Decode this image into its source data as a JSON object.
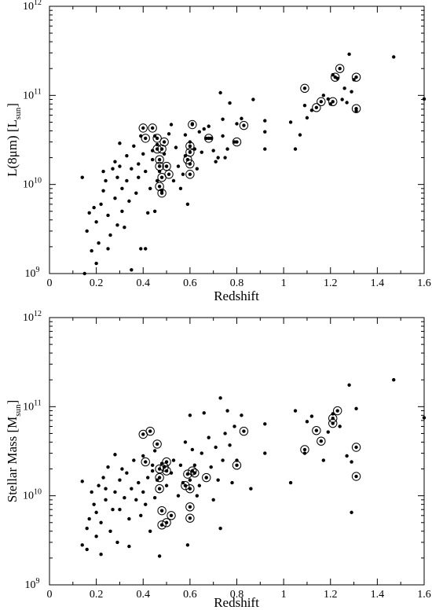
{
  "chart_data": [
    {
      "type": "scatter",
      "title": "",
      "xlabel": "Redshift",
      "ylabel": "L(8μm)  [L_sun]",
      "ylabel_parts": [
        "L(8μm)  [L",
        "sun",
        "]"
      ],
      "xlim": [
        0,
        1.6
      ],
      "ylim": [
        1000000000.0,
        1000000000000.0
      ],
      "yscale": "log",
      "x_ticks": [
        "0",
        "0.2",
        "0.4",
        "0.6",
        "0.8",
        "1",
        "1.2",
        "1.4",
        "1.6"
      ],
      "y_ticks": [
        {
          "base": "10",
          "exp": "9"
        },
        {
          "base": "10",
          "exp": "10"
        },
        {
          "base": "10",
          "exp": "11"
        },
        {
          "base": "10",
          "exp": "12"
        }
      ],
      "grid": false,
      "points": [
        [
          0.14,
          12000000000.0
        ],
        [
          0.15,
          1000000000.0
        ],
        [
          0.16,
          3000000000.0
        ],
        [
          0.17,
          4800000000.0
        ],
        [
          0.18,
          1800000000.0
        ],
        [
          0.19,
          5500000000.0
        ],
        [
          0.2,
          3800000000.0
        ],
        [
          0.2,
          1300000000.0
        ],
        [
          0.21,
          2200000000.0
        ],
        [
          0.22,
          6000000000.0
        ],
        [
          0.23,
          8500000000.0
        ],
        [
          0.23,
          14000000000.0
        ],
        [
          0.24,
          11000000000.0
        ],
        [
          0.25,
          4500000000.0
        ],
        [
          0.25,
          1900000000.0
        ],
        [
          0.26,
          2700000000.0
        ],
        [
          0.27,
          15000000000.0
        ],
        [
          0.28,
          18000000000.0
        ],
        [
          0.28,
          7000000000.0
        ],
        [
          0.29,
          3500000000.0
        ],
        [
          0.29,
          12000000000.0
        ],
        [
          0.3,
          29000000000.0
        ],
        [
          0.3,
          16000000000.0
        ],
        [
          0.31,
          5000000000.0
        ],
        [
          0.31,
          9000000000.0
        ],
        [
          0.32,
          3300000000.0
        ],
        [
          0.33,
          11000000000.0
        ],
        [
          0.33,
          21000000000.0
        ],
        [
          0.34,
          6500000000.0
        ],
        [
          0.35,
          15000000000.0
        ],
        [
          0.35,
          1100000000.0
        ],
        [
          0.36,
          27000000000.0
        ],
        [
          0.37,
          8000000000.0
        ],
        [
          0.38,
          12000000000.0
        ],
        [
          0.38,
          17000000000.0
        ],
        [
          0.39,
          35000000000.0
        ],
        [
          0.39,
          1900000000.0
        ],
        [
          0.4,
          22000000000.0
        ],
        [
          0.41,
          14000000000.0
        ],
        [
          0.41,
          1900000000.0
        ],
        [
          0.42,
          4800000000.0
        ],
        [
          0.43,
          9000000000.0
        ],
        [
          0.44,
          24000000000.0
        ],
        [
          0.44,
          19000000000.0
        ],
        [
          0.45,
          35000000000.0
        ],
        [
          0.45,
          5000000000.0
        ],
        [
          0.46,
          11000000000.0
        ],
        [
          0.46,
          28000000000.0
        ],
        [
          0.47,
          14000000000.0
        ],
        [
          0.48,
          8500000000.0
        ],
        [
          0.49,
          22000000000.0
        ],
        [
          0.5,
          16000000000.0
        ],
        [
          0.51,
          37000000000.0
        ],
        [
          0.52,
          47000000000.0
        ],
        [
          0.53,
          11000000000.0
        ],
        [
          0.54,
          26000000000.0
        ],
        [
          0.55,
          16000000000.0
        ],
        [
          0.56,
          9000000000.0
        ],
        [
          0.57,
          13000000000.0
        ],
        [
          0.58,
          36000000000.0
        ],
        [
          0.58,
          21000000000.0
        ],
        [
          0.59,
          6000000000.0
        ],
        [
          0.6,
          30000000000.0
        ],
        [
          0.61,
          48000000000.0
        ],
        [
          0.62,
          25000000000.0
        ],
        [
          0.63,
          15000000000.0
        ],
        [
          0.64,
          39000000000.0
        ],
        [
          0.65,
          23000000000.0
        ],
        [
          0.66,
          42000000000.0
        ],
        [
          0.67,
          33000000000.0
        ],
        [
          0.68,
          45000000000.0
        ],
        [
          0.69,
          33000000000.0
        ],
        [
          0.7,
          24000000000.0
        ],
        [
          0.71,
          18000000000.0
        ],
        [
          0.72,
          20000000000.0
        ],
        [
          0.73,
          107000000000.0
        ],
        [
          0.74,
          35000000000.0
        ],
        [
          0.74,
          54000000000.0
        ],
        [
          0.75,
          20000000000.0
        ],
        [
          0.76,
          25000000000.0
        ],
        [
          0.77,
          82000000000.0
        ],
        [
          0.79,
          30000000000.0
        ],
        [
          0.8,
          48000000000.0
        ],
        [
          0.82,
          55000000000.0
        ],
        [
          0.87,
          90000000000.0
        ],
        [
          0.92,
          52000000000.0
        ],
        [
          0.92,
          25000000000.0
        ],
        [
          0.92,
          39000000000.0
        ],
        [
          1.03,
          50000000000.0
        ],
        [
          1.05,
          25000000000.0
        ],
        [
          1.07,
          36000000000.0
        ],
        [
          1.09,
          77000000000.0
        ],
        [
          1.1,
          56000000000.0
        ],
        [
          1.12,
          68000000000.0
        ],
        [
          1.17,
          100000000000.0
        ],
        [
          1.19,
          91000000000.0
        ],
        [
          1.2,
          80000000000.0
        ],
        [
          1.21,
          170000000000.0
        ],
        [
          1.23,
          155000000000.0
        ],
        [
          1.25,
          90000000000.0
        ],
        [
          1.26,
          120000000000.0
        ],
        [
          1.27,
          83000000000.0
        ],
        [
          1.28,
          290000000000.0
        ],
        [
          1.29,
          110000000000.0
        ],
        [
          1.3,
          150000000000.0
        ],
        [
          1.31,
          67000000000.0
        ],
        [
          1.47,
          270000000000.0
        ],
        [
          1.6,
          91000000000.0
        ]
      ],
      "circled_points": [
        [
          0.4,
          43000000000.0
        ],
        [
          0.41,
          33000000000.0
        ],
        [
          0.44,
          43000000000.0
        ],
        [
          0.46,
          25000000000.0
        ],
        [
          0.46,
          33000000000.0
        ],
        [
          0.47,
          19000000000.0
        ],
        [
          0.47,
          16000000000.0
        ],
        [
          0.47,
          9500000000.0
        ],
        [
          0.48,
          25000000000.0
        ],
        [
          0.48,
          12000000000.0
        ],
        [
          0.48,
          8000000000.0
        ],
        [
          0.49,
          30000000000.0
        ],
        [
          0.5,
          16000000000.0
        ],
        [
          0.51,
          13000000000.0
        ],
        [
          0.59,
          19000000000.0
        ],
        [
          0.6,
          27000000000.0
        ],
        [
          0.6,
          23000000000.0
        ],
        [
          0.6,
          17000000000.0
        ],
        [
          0.6,
          13000000000.0
        ],
        [
          0.61,
          47000000000.0
        ],
        [
          0.68,
          33000000000.0
        ],
        [
          0.8,
          30000000000.0
        ],
        [
          0.83,
          46000000000.0
        ],
        [
          1.09,
          120000000000.0
        ],
        [
          1.14,
          73000000000.0
        ],
        [
          1.16,
          85000000000.0
        ],
        [
          1.21,
          85000000000.0
        ],
        [
          1.22,
          160000000000.0
        ],
        [
          1.24,
          200000000000.0
        ],
        [
          1.31,
          160000000000.0
        ],
        [
          1.31,
          71000000000.0
        ]
      ]
    },
    {
      "type": "scatter",
      "title": "",
      "xlabel": "Redshift",
      "ylabel": "Stellar Mass [M_sun]",
      "ylabel_parts": [
        "Stellar Mass [M",
        "sun",
        "]"
      ],
      "xlim": [
        0,
        1.6
      ],
      "ylim": [
        1000000000.0,
        1000000000000.0
      ],
      "yscale": "log",
      "x_ticks": [
        "0",
        "0.2",
        "0.4",
        "0.6",
        "0.8",
        "1",
        "1.2",
        "1.4",
        "1.6"
      ],
      "y_ticks": [
        {
          "base": "10",
          "exp": "9"
        },
        {
          "base": "10",
          "exp": "10"
        },
        {
          "base": "10",
          "exp": "11"
        },
        {
          "base": "10",
          "exp": "12"
        }
      ],
      "grid": false,
      "points": [
        [
          0.14,
          14500000000.0
        ],
        [
          0.14,
          2800000000.0
        ],
        [
          0.16,
          4300000000.0
        ],
        [
          0.16,
          2500000000.0
        ],
        [
          0.17,
          5500000000.0
        ],
        [
          0.18,
          11000000000.0
        ],
        [
          0.19,
          8000000000.0
        ],
        [
          0.2,
          3500000000.0
        ],
        [
          0.2,
          6500000000.0
        ],
        [
          0.21,
          13000000000.0
        ],
        [
          0.22,
          5000000000.0
        ],
        [
          0.22,
          2200000000.0
        ],
        [
          0.23,
          16000000000.0
        ],
        [
          0.24,
          9000000000.0
        ],
        [
          0.24,
          12000000000.0
        ],
        [
          0.25,
          21000000000.0
        ],
        [
          0.26,
          4000000000.0
        ],
        [
          0.27,
          7000000000.0
        ],
        [
          0.28,
          11000000000.0
        ],
        [
          0.28,
          29000000000.0
        ],
        [
          0.29,
          3000000000.0
        ],
        [
          0.3,
          15000000000.0
        ],
        [
          0.3,
          7000000000.0
        ],
        [
          0.31,
          20000000000.0
        ],
        [
          0.32,
          9500000000.0
        ],
        [
          0.33,
          18000000000.0
        ],
        [
          0.34,
          5500000000.0
        ],
        [
          0.34,
          2700000000.0
        ],
        [
          0.35,
          12000000000.0
        ],
        [
          0.36,
          25000000000.0
        ],
        [
          0.37,
          9000000000.0
        ],
        [
          0.38,
          14000000000.0
        ],
        [
          0.39,
          6000000000.0
        ],
        [
          0.4,
          11000000000.0
        ],
        [
          0.4,
          28000000000.0
        ],
        [
          0.41,
          8000000000.0
        ],
        [
          0.42,
          16000000000.0
        ],
        [
          0.43,
          4000000000.0
        ],
        [
          0.44,
          19000000000.0
        ],
        [
          0.44,
          22000000000.0
        ],
        [
          0.45,
          9500000000.0
        ],
        [
          0.45,
          32000000000.0
        ],
        [
          0.46,
          15000000000.0
        ],
        [
          0.47,
          2100000000.0
        ],
        [
          0.48,
          23000000000.0
        ],
        [
          0.5,
          13000000000.0
        ],
        [
          0.52,
          18000000000.0
        ],
        [
          0.53,
          25000000000.0
        ],
        [
          0.55,
          10000000000.0
        ],
        [
          0.56,
          22000000000.0
        ],
        [
          0.57,
          14000000000.0
        ],
        [
          0.58,
          40000000000.0
        ],
        [
          0.59,
          2800000000.0
        ],
        [
          0.6,
          15000000000.0
        ],
        [
          0.6,
          80000000000.0
        ],
        [
          0.61,
          33000000000.0
        ],
        [
          0.62,
          22000000000.0
        ],
        [
          0.63,
          10000000000.0
        ],
        [
          0.64,
          13000000000.0
        ],
        [
          0.65,
          30000000000.0
        ],
        [
          0.66,
          85000000000.0
        ],
        [
          0.67,
          16000000000.0
        ],
        [
          0.68,
          45000000000.0
        ],
        [
          0.69,
          21000000000.0
        ],
        [
          0.7,
          9000000000.0
        ],
        [
          0.71,
          35000000000.0
        ],
        [
          0.72,
          15000000000.0
        ],
        [
          0.73,
          125000000000.0
        ],
        [
          0.73,
          4300000000.0
        ],
        [
          0.74,
          25000000000.0
        ],
        [
          0.75,
          50000000000.0
        ],
        [
          0.76,
          90000000000.0
        ],
        [
          0.77,
          37000000000.0
        ],
        [
          0.78,
          14000000000.0
        ],
        [
          0.79,
          60000000000.0
        ],
        [
          0.8,
          25000000000.0
        ],
        [
          0.82,
          80000000000.0
        ],
        [
          0.86,
          12000000000.0
        ],
        [
          0.92,
          64000000000.0
        ],
        [
          0.92,
          30000000000.0
        ],
        [
          1.03,
          14000000000.0
        ],
        [
          1.05,
          90000000000.0
        ],
        [
          1.09,
          30000000000.0
        ],
        [
          1.1,
          68000000000.0
        ],
        [
          1.12,
          78000000000.0
        ],
        [
          1.17,
          25000000000.0
        ],
        [
          1.19,
          52000000000.0
        ],
        [
          1.21,
          83000000000.0
        ],
        [
          1.24,
          60000000000.0
        ],
        [
          1.27,
          28000000000.0
        ],
        [
          1.28,
          175000000000.0
        ],
        [
          1.29,
          24000000000.0
        ],
        [
          1.29,
          6500000000.0
        ],
        [
          1.31,
          95000000000.0
        ],
        [
          1.47,
          200000000000.0
        ],
        [
          1.6,
          75000000000.0
        ]
      ],
      "circled_points": [
        [
          0.4,
          49000000000.0
        ],
        [
          0.41,
          24000000000.0
        ],
        [
          0.43,
          53000000000.0
        ],
        [
          0.46,
          38000000000.0
        ],
        [
          0.47,
          20000000000.0
        ],
        [
          0.47,
          16000000000.0
        ],
        [
          0.47,
          12000000000.0
        ],
        [
          0.48,
          6800000000.0
        ],
        [
          0.48,
          4700000000.0
        ],
        [
          0.49,
          21000000000.0
        ],
        [
          0.5,
          24000000000.0
        ],
        [
          0.5,
          19000000000.0
        ],
        [
          0.5,
          5000000000.0
        ],
        [
          0.52,
          6000000000.0
        ],
        [
          0.58,
          13000000000.0
        ],
        [
          0.59,
          17500000000.0
        ],
        [
          0.6,
          12000000000.0
        ],
        [
          0.6,
          7500000000.0
        ],
        [
          0.6,
          5600000000.0
        ],
        [
          0.61,
          19000000000.0
        ],
        [
          0.62,
          18000000000.0
        ],
        [
          0.67,
          16000000000.0
        ],
        [
          0.8,
          22000000000.0
        ],
        [
          0.83,
          53000000000.0
        ],
        [
          1.09,
          33000000000.0
        ],
        [
          1.14,
          54000000000.0
        ],
        [
          1.16,
          41000000000.0
        ],
        [
          1.21,
          65000000000.0
        ],
        [
          1.21,
          74000000000.0
        ],
        [
          1.23,
          90000000000.0
        ],
        [
          1.31,
          35000000000.0
        ],
        [
          1.31,
          16500000000.0
        ]
      ]
    }
  ]
}
